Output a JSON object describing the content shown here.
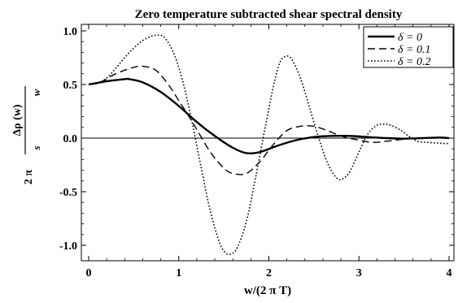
{
  "chart_data": {
    "type": "line",
    "title": "Zero temperature subtracted shear spectral density",
    "xlabel": "w/(2 π T)",
    "ylabel": {
      "prefix": "2 π",
      "numerator": "Δρ (w)",
      "denominator_left": "s",
      "denominator_right": "w"
    },
    "xlim": [
      0,
      4
    ],
    "ylim": [
      -1.13,
      1.0
    ],
    "x_ticks": [
      0,
      1,
      2,
      3,
      4
    ],
    "x_tick_labels": [
      "0",
      "1",
      "2",
      "3",
      "4"
    ],
    "y_ticks": [
      -1.0,
      -0.5,
      0.0,
      0.5,
      1.0
    ],
    "y_tick_labels": [
      "-1.0",
      "-0.5",
      "0.0",
      "0.5",
      "1.0"
    ],
    "grid": false,
    "zero_line": true,
    "legend_position": "top-right",
    "series": [
      {
        "name": "δ = 0",
        "style": "solid",
        "x": [
          0,
          0.2,
          0.4,
          0.45,
          0.6,
          0.8,
          1.0,
          1.2,
          1.4,
          1.6,
          1.75,
          1.9,
          2.1,
          2.3,
          2.5,
          2.7,
          2.9,
          3.1,
          3.3,
          3.5,
          3.7,
          3.9,
          4.0
        ],
        "y": [
          0.5,
          0.53,
          0.55,
          0.55,
          0.52,
          0.43,
          0.3,
          0.15,
          0.02,
          -0.09,
          -0.14,
          -0.13,
          -0.07,
          -0.02,
          0.01,
          0.02,
          0.02,
          0.01,
          0.0,
          -0.005,
          0.0,
          0.005,
          0.0
        ]
      },
      {
        "name": "δ = 0.1",
        "style": "dashed",
        "x": [
          0,
          0.15,
          0.3,
          0.5,
          0.6,
          0.75,
          0.9,
          1.0,
          1.1,
          1.2,
          1.35,
          1.5,
          1.6,
          1.75,
          1.9,
          2.05,
          2.2,
          2.35,
          2.5,
          2.65,
          2.8,
          3.0,
          3.15,
          3.3,
          3.5,
          3.7,
          3.9,
          4.0
        ],
        "y": [
          0.5,
          0.53,
          0.6,
          0.66,
          0.67,
          0.63,
          0.48,
          0.35,
          0.22,
          0.08,
          -0.13,
          -0.28,
          -0.33,
          -0.33,
          -0.22,
          -0.06,
          0.07,
          0.11,
          0.11,
          0.07,
          0.02,
          -0.02,
          -0.04,
          -0.03,
          -0.01,
          0.0,
          0.0,
          0.0
        ]
      },
      {
        "name": "δ = 0.2",
        "style": "dotted",
        "x": [
          0,
          0.1,
          0.2,
          0.3,
          0.4,
          0.5,
          0.6,
          0.7,
          0.78,
          0.85,
          0.95,
          1.05,
          1.15,
          1.25,
          1.35,
          1.45,
          1.52,
          1.58,
          1.65,
          1.75,
          1.85,
          1.95,
          2.05,
          2.12,
          2.18,
          2.25,
          2.35,
          2.45,
          2.55,
          2.65,
          2.75,
          2.82,
          2.9,
          3.0,
          3.1,
          3.2,
          3.28,
          3.35,
          3.45,
          3.55,
          3.65,
          3.75,
          3.85,
          3.95,
          4.0
        ],
        "y": [
          0.5,
          0.51,
          0.56,
          0.65,
          0.75,
          0.84,
          0.91,
          0.95,
          0.96,
          0.93,
          0.78,
          0.51,
          0.14,
          -0.28,
          -0.68,
          -0.97,
          -1.07,
          -1.08,
          -1.02,
          -0.78,
          -0.38,
          0.06,
          0.48,
          0.7,
          0.76,
          0.74,
          0.56,
          0.29,
          0.01,
          -0.23,
          -0.37,
          -0.38,
          -0.31,
          -0.13,
          0.04,
          0.12,
          0.13,
          0.12,
          0.08,
          0.02,
          -0.03,
          -0.04,
          -0.045,
          -0.05,
          -0.05
        ]
      }
    ]
  }
}
